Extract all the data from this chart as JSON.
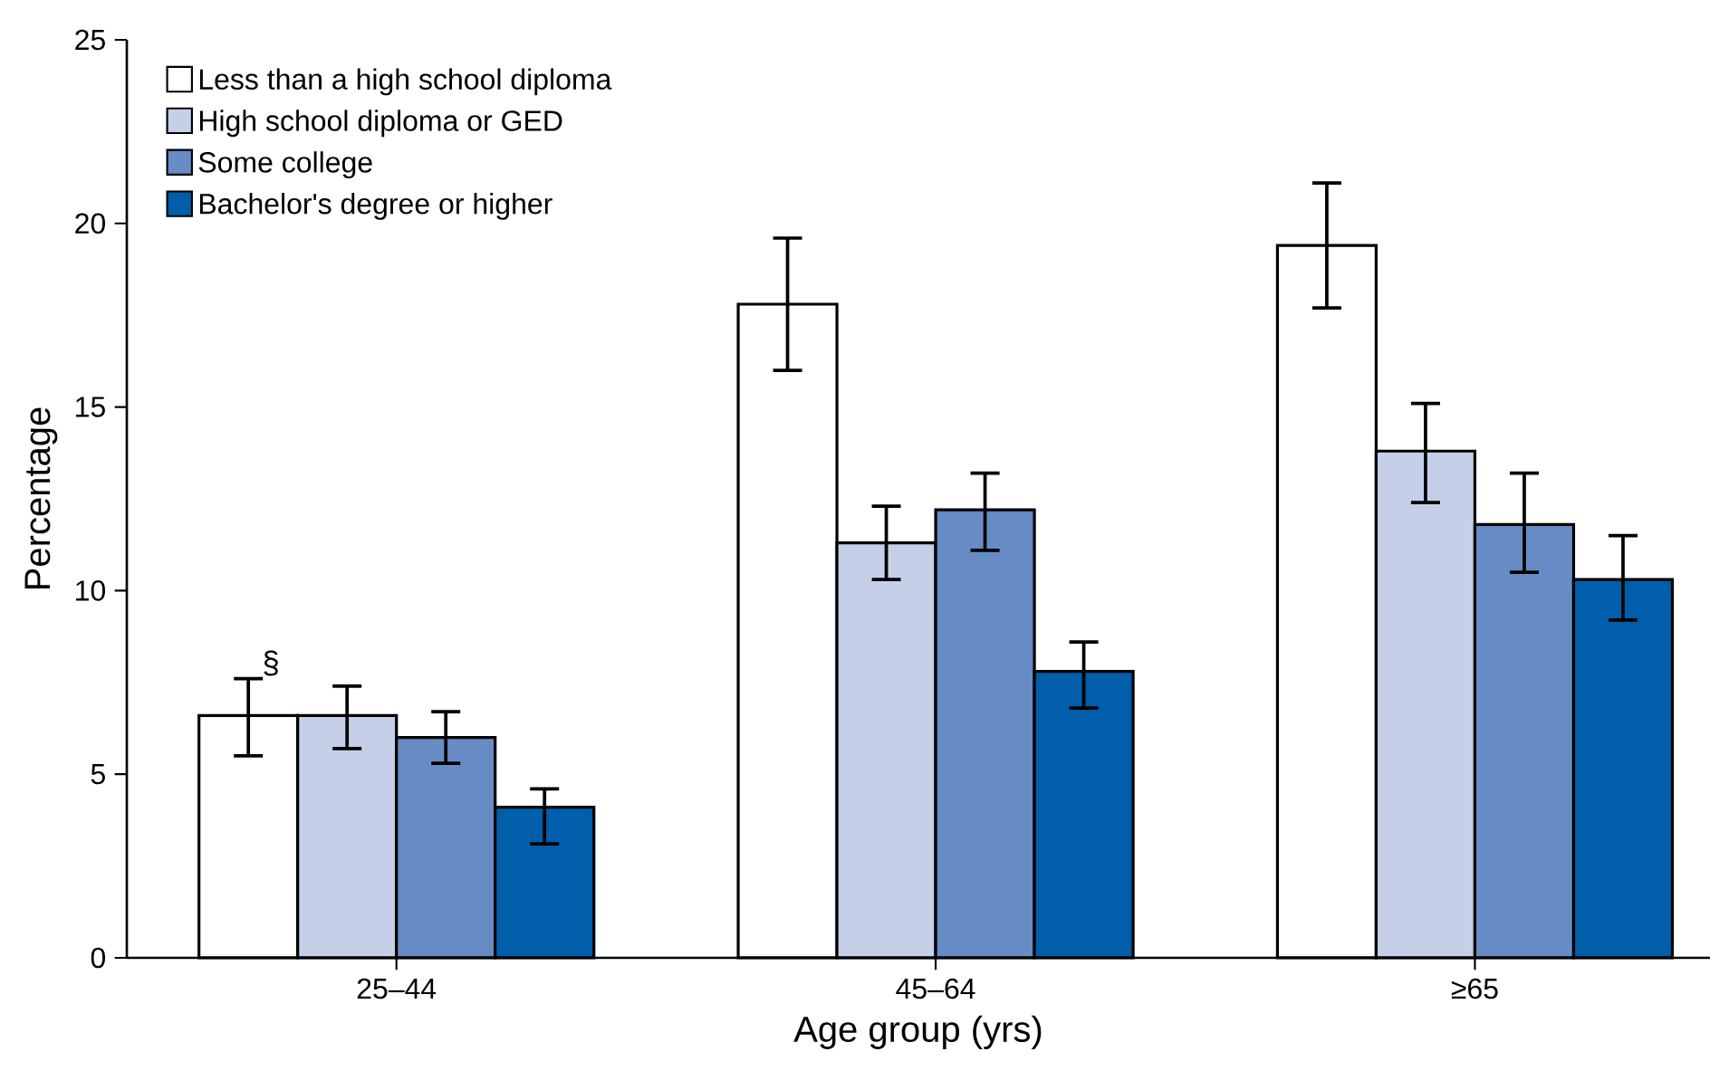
{
  "chart_data": {
    "type": "bar",
    "xlabel": "Age group (yrs)",
    "ylabel": "Percentage",
    "categories": [
      "25–44",
      "45–64",
      "≥65"
    ],
    "series": [
      {
        "name": "Less than a high school diploma",
        "color": "#ffffff",
        "values": [
          6.6,
          17.8,
          19.4
        ],
        "errors": [
          [
            5.5,
            7.6
          ],
          [
            16.0,
            19.6
          ],
          [
            17.7,
            21.1
          ]
        ]
      },
      {
        "name": "High school diploma or GED",
        "color": "#c5d0e8",
        "values": [
          6.6,
          11.3,
          13.8
        ],
        "errors": [
          [
            5.7,
            7.4
          ],
          [
            10.3,
            12.3
          ],
          [
            12.4,
            15.1
          ]
        ]
      },
      {
        "name": "Some college",
        "color": "#678cc5",
        "values": [
          6.0,
          12.2,
          11.8
        ],
        "errors": [
          [
            5.3,
            6.7
          ],
          [
            11.1,
            13.2
          ],
          [
            10.5,
            13.2
          ]
        ]
      },
      {
        "name": "Bachelor's degree or higher",
        "color": "#005eab",
        "values": [
          4.1,
          7.8,
          10.3
        ],
        "errors": [
          [
            3.1,
            4.6
          ],
          [
            6.8,
            8.6
          ],
          [
            9.2,
            11.5
          ]
        ]
      }
    ],
    "annotations": [
      "§"
    ],
    "ylim": [
      0,
      25
    ],
    "yticks": [
      0,
      5,
      10,
      15,
      20,
      25
    ],
    "grid": false,
    "legend": "top left"
  }
}
